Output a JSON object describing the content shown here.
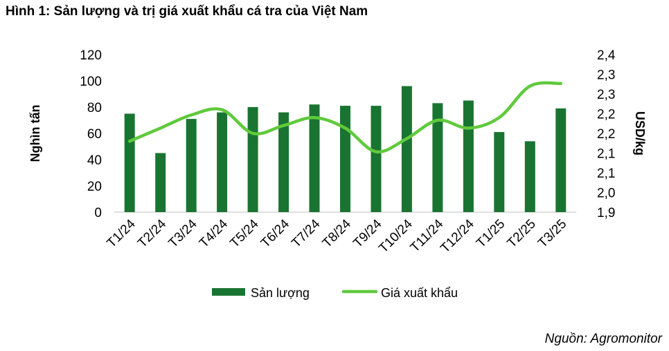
{
  "title": "Hình 1: Sản lượng và trị giá xuất khẩu cá tra của Việt Nam",
  "source": "Nguồn: Agromonitor",
  "colors": {
    "bar": "#1a7431",
    "line": "#5fca3c"
  },
  "chart_data": {
    "type": "bar",
    "categories": [
      "T1/24",
      "T2/24",
      "T3/24",
      "T4/24",
      "T5/24",
      "T6/24",
      "T7/24",
      "T8/24",
      "T9/24",
      "T10/24",
      "T11/24",
      "T12/24",
      "T1/25",
      "T2/25",
      "T3/25"
    ],
    "series": [
      {
        "name": "Sản lượng",
        "type": "bar",
        "axis": "left",
        "values": [
          75,
          45,
          71,
          76,
          80,
          76,
          82,
          81,
          81,
          96,
          83,
          85,
          61,
          54,
          79
        ]
      },
      {
        "name": "Giá xuất khẩu",
        "type": "line",
        "axis": "right",
        "values": [
          2.12,
          2.17,
          2.22,
          2.24,
          2.15,
          2.18,
          2.21,
          2.17,
          2.08,
          2.13,
          2.2,
          2.17,
          2.21,
          2.33,
          2.34
        ]
      }
    ],
    "ylabel": "Nghìn tấn",
    "y2label": "USD/kg",
    "ylim": [
      0,
      120
    ],
    "y2lim": [
      1.85,
      2.45
    ],
    "yticks": [
      "0",
      "20",
      "40",
      "60",
      "80",
      "100",
      "120"
    ],
    "y2ticks": [
      "1,9",
      "2,0",
      "2,1",
      "2,1",
      "2,2",
      "2,2",
      "2,3",
      "2,3",
      "2,4"
    ],
    "grid": false,
    "legend": "bottom"
  }
}
